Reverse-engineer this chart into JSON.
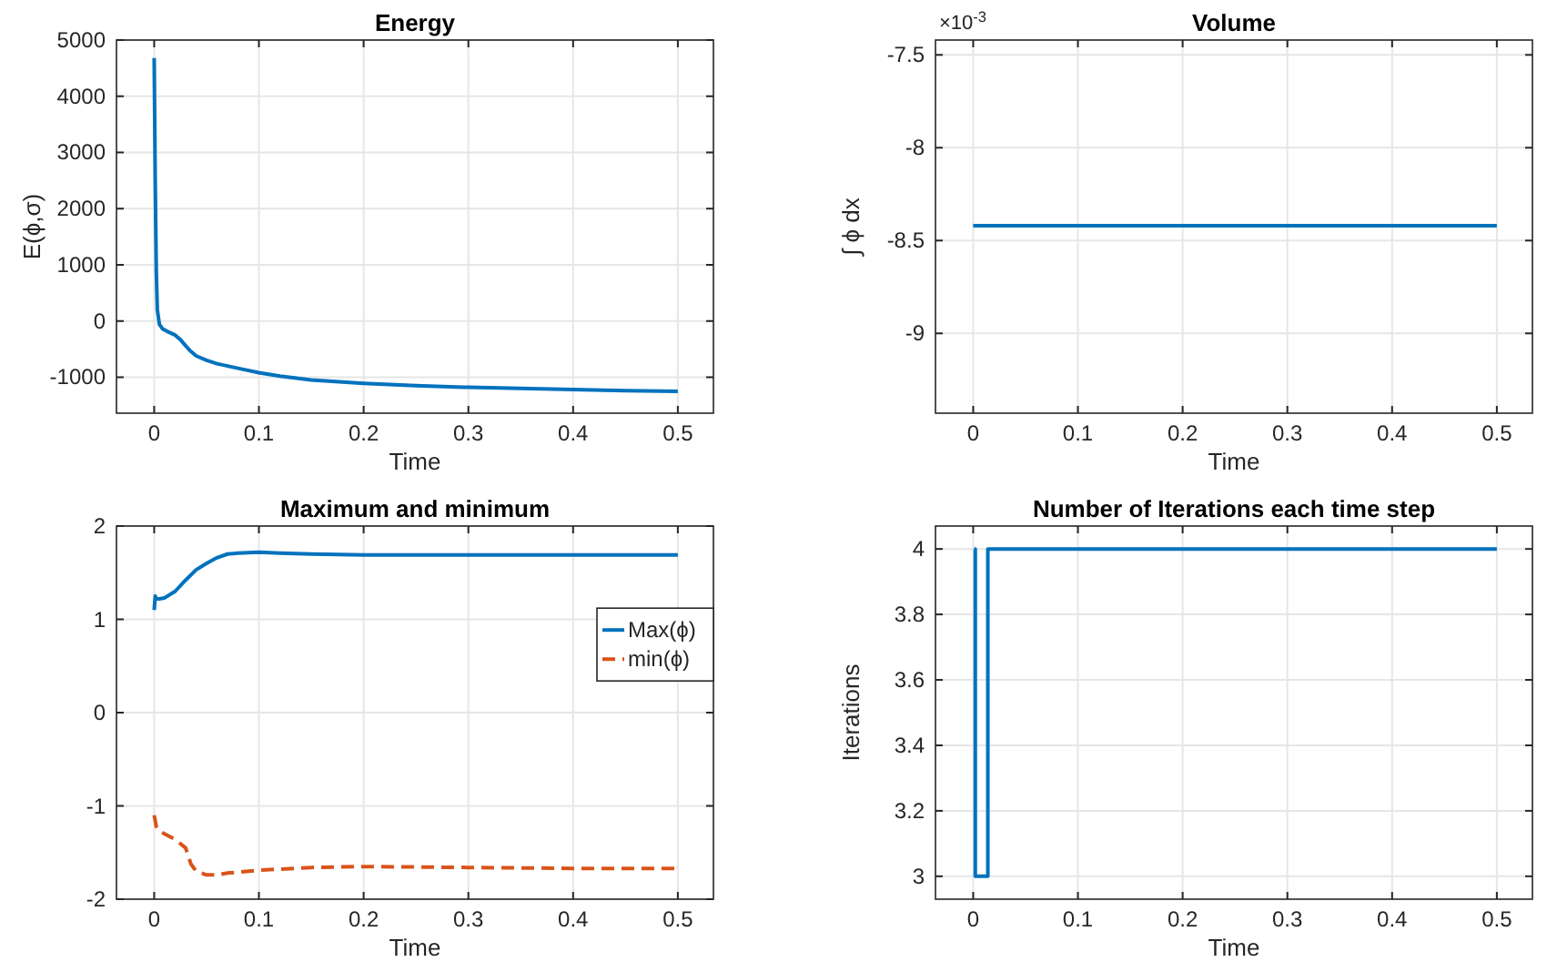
{
  "chart_data": [
    {
      "type": "line",
      "title": "Energy",
      "xlabel": "Time",
      "ylabel": "E(ϕ,σ)",
      "xlim": [
        -0.036,
        0.534
      ],
      "xticks": [
        0,
        0.1,
        0.2,
        0.3,
        0.4,
        0.5
      ],
      "ylim": [
        -1640,
        5000
      ],
      "yticks": [
        -1000,
        0,
        1000,
        2000,
        3000,
        4000,
        5000
      ],
      "grid": true,
      "series": [
        {
          "color": "#0072bd",
          "x": [
            0,
            0.001,
            0.002,
            0.003,
            0.005,
            0.008,
            0.012,
            0.02,
            0.025,
            0.03,
            0.035,
            0.04,
            0.05,
            0.06,
            0.07,
            0.08,
            0.1,
            0.12,
            0.15,
            0.2,
            0.25,
            0.3,
            0.35,
            0.4,
            0.45,
            0.5
          ],
          "values": [
            4680,
            2500,
            900,
            200,
            -60,
            -140,
            -180,
            -250,
            -330,
            -440,
            -540,
            -620,
            -700,
            -760,
            -800,
            -840,
            -920,
            -980,
            -1050,
            -1110,
            -1150,
            -1180,
            -1200,
            -1220,
            -1240,
            -1250
          ]
        }
      ]
    },
    {
      "type": "line",
      "title": "Volume",
      "xlabel": "Time",
      "ylabel": "∫ ϕ dx",
      "annotations": [
        "×10$^{-3}$"
      ],
      "xlim": [
        -0.036,
        0.534
      ],
      "xticks": [
        0,
        0.1,
        0.2,
        0.3,
        0.4,
        0.5
      ],
      "ylim": [
        -9.43,
        -7.42
      ],
      "yticks": [
        -9,
        -8.5,
        -8,
        -7.5
      ],
      "grid": true,
      "series": [
        {
          "color": "#0072bd",
          "x": [
            0,
            0.5
          ],
          "values": [
            -8.42,
            -8.42
          ]
        }
      ]
    },
    {
      "type": "line",
      "title": "Maximum and minimum",
      "xlabel": "Time",
      "xlim": [
        -0.036,
        0.534
      ],
      "xticks": [
        0,
        0.1,
        0.2,
        0.3,
        0.4,
        0.5
      ],
      "ylim": [
        -2,
        2
      ],
      "yticks": [
        -2,
        -1,
        0,
        1,
        2
      ],
      "grid": true,
      "legend": "right",
      "series": [
        {
          "name": "Max(ϕ)",
          "color": "#0072bd",
          "line_style": "solid",
          "x": [
            0,
            0.001,
            0.002,
            0.005,
            0.01,
            0.02,
            0.03,
            0.04,
            0.05,
            0.06,
            0.07,
            0.08,
            0.1,
            0.12,
            0.15,
            0.2,
            0.3,
            0.4,
            0.5
          ],
          "values": [
            1.1,
            1.25,
            1.22,
            1.22,
            1.23,
            1.3,
            1.42,
            1.53,
            1.6,
            1.66,
            1.7,
            1.71,
            1.72,
            1.71,
            1.7,
            1.69,
            1.69,
            1.69,
            1.69
          ]
        },
        {
          "name": "min(ϕ)",
          "color": "#d95319",
          "line_style": "dashed",
          "x": [
            0,
            0.002,
            0.005,
            0.01,
            0.02,
            0.03,
            0.035,
            0.04,
            0.05,
            0.06,
            0.07,
            0.1,
            0.15,
            0.2,
            0.3,
            0.4,
            0.5
          ],
          "values": [
            -1.1,
            -1.22,
            -1.27,
            -1.3,
            -1.36,
            -1.45,
            -1.62,
            -1.7,
            -1.74,
            -1.74,
            -1.72,
            -1.69,
            -1.66,
            -1.65,
            -1.66,
            -1.67,
            -1.67
          ]
        }
      ]
    },
    {
      "type": "step",
      "title": "Number of Iterations each time step",
      "xlabel": "Time",
      "ylabel": "Iterations",
      "xlim": [
        -0.036,
        0.534
      ],
      "xticks": [
        0,
        0.1,
        0.2,
        0.3,
        0.4,
        0.5
      ],
      "ylim": [
        2.93,
        4.07
      ],
      "yticks": [
        3,
        3.2,
        3.4,
        3.6,
        3.8,
        4
      ],
      "grid": true,
      "series": [
        {
          "color": "#0072bd",
          "x": [
            0.001,
            0.002,
            0.014,
            0.5
          ],
          "values": [
            4,
            3,
            4,
            4
          ]
        }
      ]
    }
  ]
}
